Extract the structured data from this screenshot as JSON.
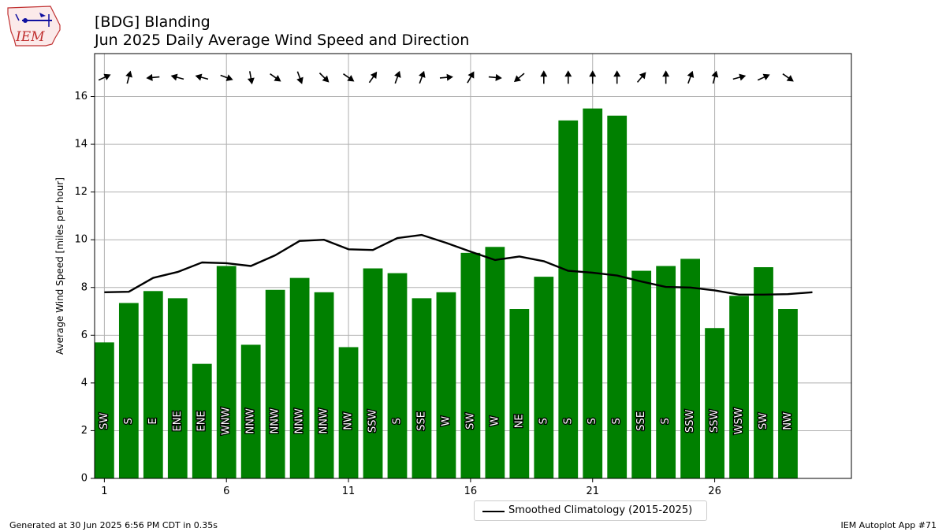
{
  "header": {
    "title_line1": "[BDG] Blanding",
    "title_line2": "Jun 2025 Daily Average Wind Speed and Direction"
  },
  "logo": {
    "text": "IEM"
  },
  "footer": {
    "generated": "Generated at 30 Jun 2025 6:56 PM CDT in 0.35s",
    "app": "IEM Autoplot App #71"
  },
  "legend": {
    "label": "Smoothed Climatology (2015-2025)"
  },
  "colors": {
    "bar": "#008000",
    "climatology": "#000000",
    "grid": "#b0b0b0"
  },
  "chart_data": {
    "type": "bar",
    "ylabel": "Average Wind Speed [miles per hour]",
    "xlabel": "",
    "ylim": [
      0,
      17.8
    ],
    "xlim": [
      0.6,
      31.6
    ],
    "x_ticks": [
      1,
      6,
      11,
      16,
      21,
      26
    ],
    "y_ticks": [
      0,
      2,
      4,
      6,
      8,
      10,
      12,
      14,
      16
    ],
    "grid": true,
    "legend_position": "bottom-center",
    "days": [
      1,
      2,
      3,
      4,
      5,
      6,
      7,
      8,
      9,
      10,
      11,
      12,
      13,
      14,
      15,
      16,
      17,
      18,
      19,
      20,
      21,
      22,
      23,
      24,
      25,
      26,
      27,
      28,
      29
    ],
    "values": [
      5.7,
      7.35,
      7.85,
      7.55,
      4.8,
      8.9,
      5.6,
      7.9,
      8.4,
      7.8,
      5.5,
      8.8,
      8.6,
      7.55,
      7.8,
      9.45,
      9.7,
      7.1,
      8.45,
      15.0,
      15.5,
      15.2,
      8.7,
      8.9,
      9.2,
      6.3,
      7.65,
      8.85,
      7.1
    ],
    "directions": [
      "SW",
      "S",
      "E",
      "ENE",
      "ENE",
      "WNW",
      "NNW",
      "NNW",
      "NNW",
      "NNW",
      "NW",
      "SSW",
      "S",
      "SSE",
      "W",
      "SW",
      "W",
      "NE",
      "S",
      "S",
      "S",
      "S",
      "SSE",
      "S",
      "SSW",
      "SSW",
      "WSW",
      "SW",
      "NW"
    ],
    "arrow_angles_deg": [
      -25,
      -75,
      -185,
      -165,
      -165,
      20,
      80,
      35,
      70,
      45,
      35,
      -55,
      -70,
      -70,
      -5,
      -60,
      5,
      140,
      -90,
      -90,
      -90,
      -90,
      -50,
      -90,
      -70,
      -75,
      -15,
      -25,
      35
    ],
    "climatology": {
      "name": "Smoothed Climatology (2015-2025)",
      "x": [
        1,
        2,
        3,
        4,
        5,
        6,
        7,
        8,
        9,
        10,
        11,
        12,
        13,
        14,
        15,
        16,
        17,
        18,
        19,
        20,
        21,
        22,
        23,
        24,
        25,
        26,
        27,
        28,
        29,
        30
      ],
      "values": [
        7.8,
        7.82,
        8.4,
        8.65,
        9.05,
        9.02,
        8.9,
        9.35,
        9.95,
        10.0,
        9.6,
        9.57,
        10.07,
        10.2,
        9.87,
        9.5,
        9.15,
        9.3,
        9.1,
        8.7,
        8.62,
        8.5,
        8.25,
        8.02,
        8.0,
        7.88,
        7.7,
        7.7,
        7.72,
        7.8
      ]
    }
  }
}
